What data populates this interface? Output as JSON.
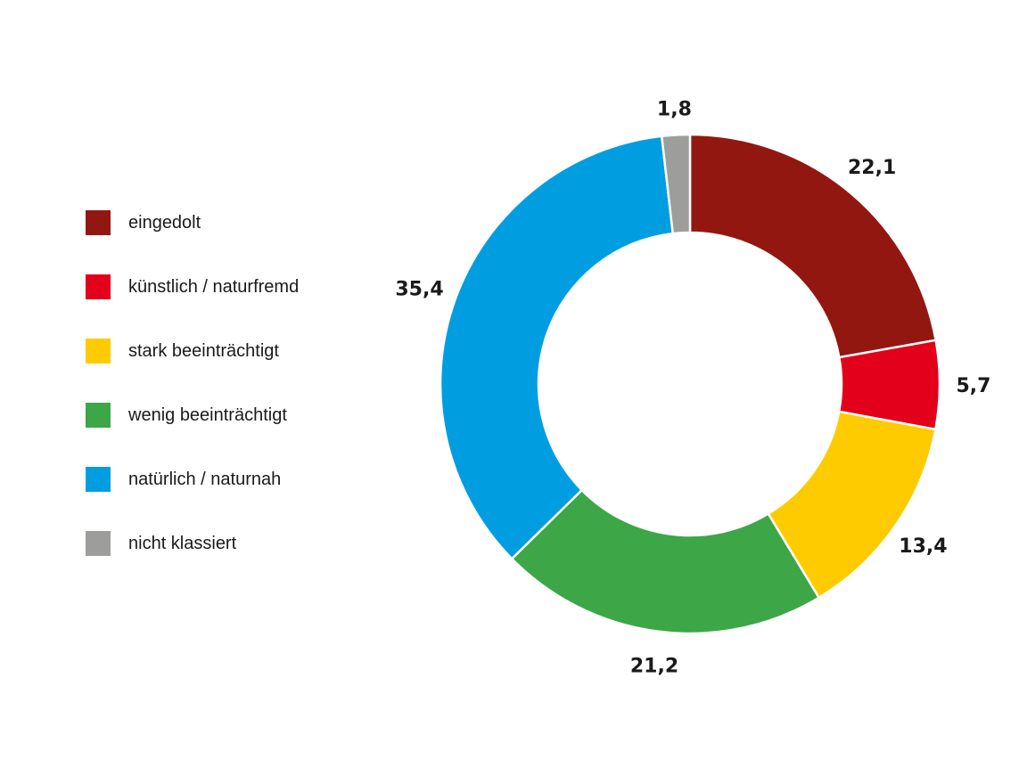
{
  "chart_data": {
    "type": "pie",
    "subtype": "donut",
    "title": "",
    "unit": "%",
    "categories": [
      "eingedolt",
      "künstlich / naturfremd",
      "stark beeinträchtigt",
      "wenig beeinträchtigt",
      "natürlich / naturnah",
      "nicht klassiert"
    ],
    "values": [
      22.1,
      5.7,
      13.4,
      21.2,
      35.4,
      1.8
    ],
    "value_labels": [
      "22,1",
      "5,7",
      "13,4",
      "21,2",
      "35,4",
      "1,8"
    ],
    "colors": [
      "#931711",
      "#e2001a",
      "#fecb00",
      "#3da647",
      "#009ee0",
      "#9d9d9c"
    ],
    "legend_position": "left",
    "start_angle_deg": 0,
    "direction": "clockwise"
  },
  "legend": {
    "items": [
      {
        "label": "eingedolt",
        "color": "#931711"
      },
      {
        "label": "künstlich / naturfremd",
        "color": "#e2001a"
      },
      {
        "label": "stark beeinträchtigt",
        "color": "#fecb00"
      },
      {
        "label": "wenig beeinträchtigt",
        "color": "#3da647"
      },
      {
        "label": "natürlich / naturnah",
        "color": "#009ee0"
      },
      {
        "label": "nicht klassiert",
        "color": "#9d9d9c"
      }
    ]
  }
}
